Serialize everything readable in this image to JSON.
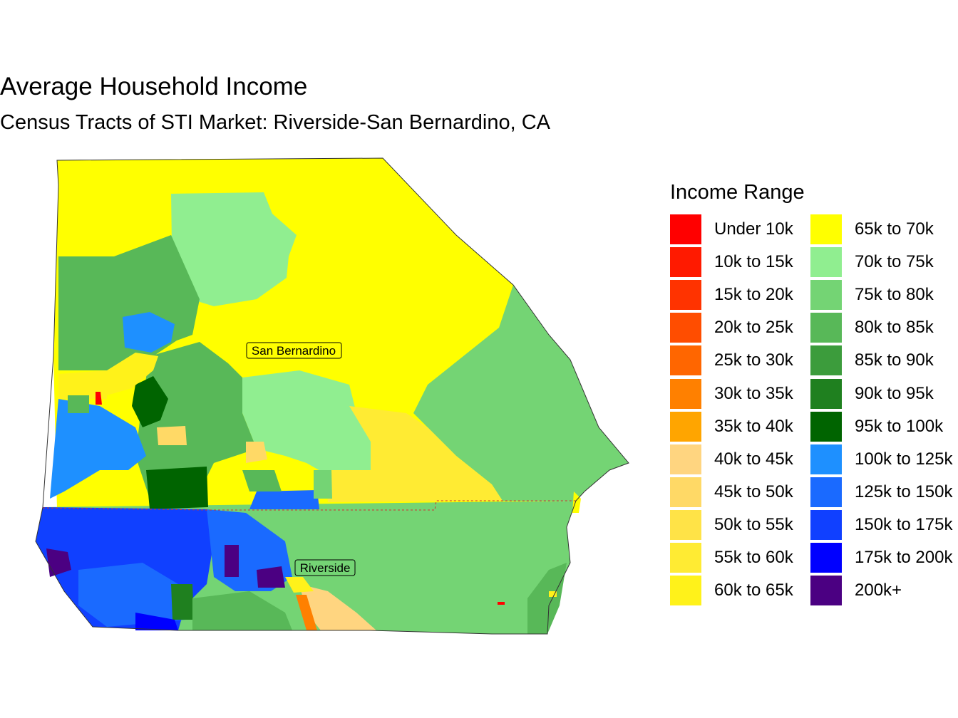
{
  "title": "Average Household Income",
  "subtitle": "Census Tracts of STI Market: Riverside-San Bernardino, CA",
  "legend": {
    "title": "Income Range",
    "items": [
      {
        "label": "Under 10k",
        "color": "#ff0000"
      },
      {
        "label": "10k to 15k",
        "color": "#ff1a00"
      },
      {
        "label": "15k to 20k",
        "color": "#ff3300"
      },
      {
        "label": "20k to 25k",
        "color": "#ff4d00"
      },
      {
        "label": "25k to 30k",
        "color": "#ff6600"
      },
      {
        "label": "30k to 35k",
        "color": "#ff8000"
      },
      {
        "label": "35k to 40k",
        "color": "#ffa500"
      },
      {
        "label": "40k to 45k",
        "color": "#ffd580"
      },
      {
        "label": "45k to 50k",
        "color": "#ffd966"
      },
      {
        "label": "50k to 55k",
        "color": "#ffe347"
      },
      {
        "label": "55k to 60k",
        "color": "#ffeb33"
      },
      {
        "label": "60k to 65k",
        "color": "#fff21a"
      },
      {
        "label": "65k to 70k",
        "color": "#ffff00"
      },
      {
        "label": "70k to 75k",
        "color": "#90ee90"
      },
      {
        "label": "75k to 80k",
        "color": "#74d474"
      },
      {
        "label": "80k to 85k",
        "color": "#58b858"
      },
      {
        "label": "85k to 90k",
        "color": "#3c9c3c"
      },
      {
        "label": "90k to 95k",
        "color": "#1f801f"
      },
      {
        "label": "95k to 100k",
        "color": "#006400"
      },
      {
        "label": "100k to 125k",
        "color": "#1e90ff"
      },
      {
        "label": "125k to 150k",
        "color": "#1a6aff"
      },
      {
        "label": "150k to 175k",
        "color": "#1040ff"
      },
      {
        "label": "175k to 200k",
        "color": "#0000ff"
      },
      {
        "label": "200k+",
        "color": "#4b0082"
      }
    ]
  },
  "map": {
    "labels": {
      "san_bernardino": "San Bernardino",
      "riverside": "Riverside"
    }
  }
}
